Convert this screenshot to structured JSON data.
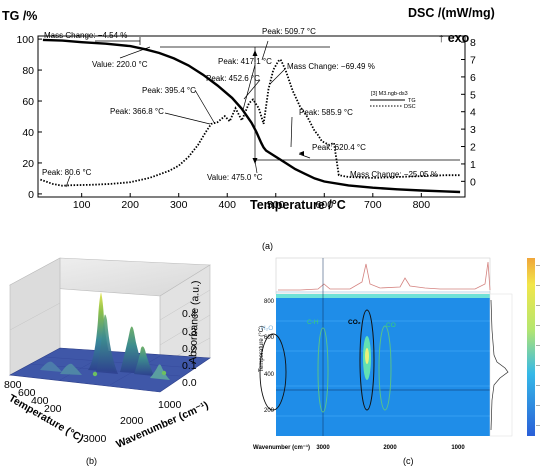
{
  "panel_a": {
    "label": "(a)",
    "ylabel_left": "TG /%",
    "ylabel_right": "DSC /(mW/mg)",
    "exo_label": "↑ exo",
    "xlabel": "Temperature /°C",
    "legend": {
      "title": "[3] M3.ngb-ds3",
      "tg": "TG",
      "dsc": "DSC"
    }
  },
  "panel_b": {
    "label": "(b)",
    "zlabel": "Absorbance (a.u.)",
    "xlabel": "Wavenumber (cm⁻¹)",
    "ylabel": "Temperature (°C)",
    "z_ticks": [
      "0.4",
      "0.3",
      "0.2",
      "0.1",
      "0.0"
    ],
    "wn_ticks": [
      "1000",
      "2000",
      "3000"
    ],
    "temp_ticks": [
      "800",
      "600",
      "400",
      "200"
    ]
  },
  "panel_c": {
    "label": "(c)",
    "ylabel": "Temperature (°C)",
    "xlabel": "Wavenumber (cm⁻¹)",
    "y_ticks": [
      "800",
      "600",
      "400",
      "200"
    ],
    "x_ticks": [
      "3000",
      "2000",
      "1000"
    ],
    "band_labels": {
      "h2o": "H₂O",
      "ch": "C-H",
      "co2": "CO₂",
      "co": "CO"
    }
  },
  "chart_data": [
    {
      "type": "line",
      "panel": "a",
      "xlabel": "Temperature /°C",
      "xlim": [
        10,
        890
      ],
      "x_ticks": [
        100,
        200,
        300,
        400,
        500,
        600,
        700,
        800
      ],
      "y_left": {
        "label": "TG /%",
        "lim": [
          -2,
          102
        ],
        "ticks": [
          0,
          20,
          40,
          60,
          80,
          100
        ]
      },
      "y_right": {
        "label": "DSC /(mW/mg)",
        "lim": [
          -0.9,
          8.35
        ],
        "ticks": [
          0,
          1,
          2,
          3,
          4,
          5,
          6,
          7,
          8
        ]
      },
      "series": [
        {
          "name": "TG",
          "axis": "left",
          "style": "solid",
          "x": [
            20,
            60,
            100,
            150,
            200,
            230,
            260,
            290,
            320,
            350,
            380,
            410,
            430,
            450,
            460,
            470,
            475,
            480,
            500,
            520,
            540,
            560,
            580,
            600,
            650,
            700,
            750,
            800,
            850,
            880
          ],
          "y": [
            99.5,
            99,
            98,
            97,
            95.5,
            93.5,
            91,
            87.5,
            83,
            77,
            70,
            62,
            55,
            46,
            40,
            33,
            30,
            28,
            24,
            20,
            16,
            13,
            10,
            8,
            5.5,
            4,
            3,
            2.2,
            1.6,
            1.2
          ]
        },
        {
          "name": "DSC",
          "axis": "right",
          "style": "dotted",
          "x": [
            15,
            40,
            60,
            80,
            120,
            160,
            200,
            240,
            280,
            300,
            320,
            340,
            355,
            367,
            380,
            395,
            405,
            417,
            430,
            445,
            453,
            465,
            475,
            485,
            495,
            505,
            510,
            520,
            535,
            550,
            565,
            580,
            586,
            595,
            610,
            620,
            630,
            650,
            700,
            750,
            800,
            850,
            880
          ],
          "y": [
            0.1,
            -0.15,
            -0.25,
            -0.22,
            -0.2,
            -0.15,
            -0.05,
            0.2,
            0.6,
            0.9,
            1.4,
            2.1,
            2.8,
            3.3,
            3.4,
            3.75,
            3.45,
            4.2,
            3.5,
            4.5,
            4.7,
            4.2,
            3.3,
            5.3,
            6.4,
            6.9,
            7.0,
            6.4,
            5.2,
            4.3,
            3.7,
            2.9,
            2.7,
            2.3,
            2.1,
            2.2,
            0.35,
            0.25,
            0.2,
            0.25,
            0.3,
            0.35,
            0.35
          ]
        }
      ],
      "annotations": [
        "Mass Change: −4.54 %",
        "Value: 220.0 °C",
        "Peak: 80.6 °C",
        "Peak: 366.8 °C",
        "Peak: 395.4 °C",
        "Peak: 417.1 °C",
        "Peak: 452.6 °C",
        "Peak: 509.7 °C",
        "Mass Change: −69.49 %",
        "Peak: 585.9 °C",
        "Peak: 620.4 °C",
        "Value: 475.0 °C",
        "Mass Change: −25.05 %"
      ]
    }
  ]
}
